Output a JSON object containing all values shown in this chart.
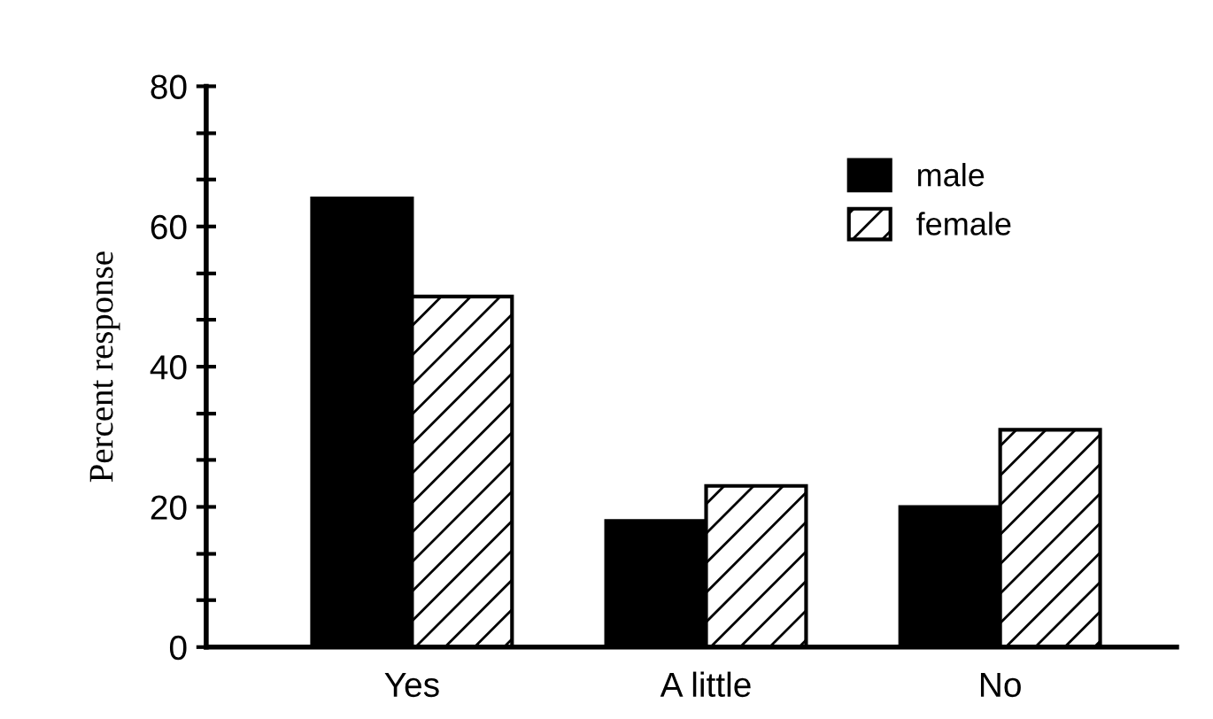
{
  "chart_data": {
    "type": "bar",
    "ylabel": "Percent response",
    "categories": [
      "Yes",
      "A little",
      "No"
    ],
    "series": [
      {
        "name": "male",
        "color": "#000000",
        "values": [
          64,
          18,
          20
        ]
      },
      {
        "name": "female",
        "color": "#ffffff",
        "values": [
          50,
          23,
          31
        ]
      }
    ],
    "ylim": [
      0,
      80
    ],
    "yticks": [
      0,
      {
        "value": 6.7,
        "label": null
      },
      {
        "value": 13.3,
        "label": null
      },
      20,
      {
        "value": 26.7,
        "label": null
      },
      {
        "value": 33.3,
        "label": null
      },
      40,
      {
        "value": 46.7,
        "label": null
      },
      {
        "value": 53.3,
        "label": null
      },
      60,
      {
        "value": 66.7,
        "label": null
      },
      {
        "value": 73.3,
        "label": null
      },
      80
    ],
    "legend": "top right",
    "grid": false
  }
}
